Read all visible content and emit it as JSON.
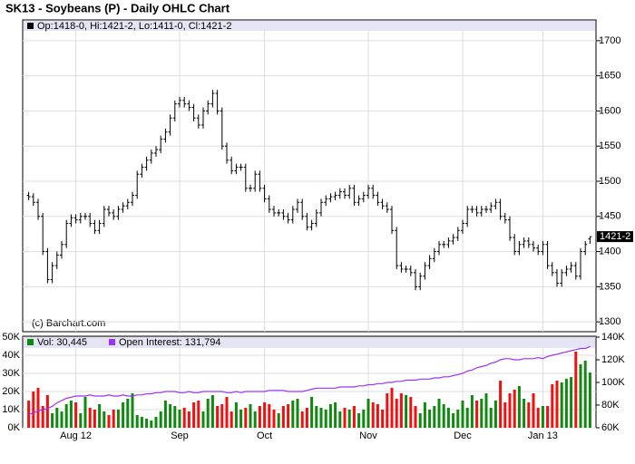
{
  "chart_data": {
    "type": "ohlc",
    "title": "SK13 - Soybeans (P) - Daily OHLC Chart",
    "legend_text": "Op:1418-0, Hi:1421-2, Lo:1411-0, Cl:1421-2",
    "copyright": "(c) Barchart.com",
    "color": "#000000",
    "last_label": "1421-2",
    "grid": true,
    "ylim": [
      1286,
      1714
    ],
    "yticks": [
      1300,
      1350,
      1400,
      1450,
      1500,
      1550,
      1600,
      1650,
      1700
    ],
    "categories": [
      null,
      null,
      null,
      null,
      null,
      null,
      null,
      null,
      null,
      null,
      "Aug 12",
      null,
      null,
      null,
      null,
      null,
      null,
      null,
      null,
      null,
      null,
      null,
      null,
      null,
      null,
      null,
      null,
      null,
      null,
      null,
      null,
      null,
      "Sep",
      null,
      null,
      null,
      null,
      null,
      null,
      null,
      null,
      null,
      null,
      null,
      null,
      null,
      null,
      null,
      null,
      null,
      "Oct",
      null,
      null,
      null,
      null,
      null,
      null,
      null,
      null,
      null,
      null,
      null,
      null,
      null,
      null,
      null,
      null,
      null,
      null,
      null,
      null,
      null,
      "Nov",
      null,
      null,
      null,
      null,
      null,
      null,
      null,
      null,
      null,
      null,
      null,
      null,
      null,
      null,
      null,
      null,
      null,
      null,
      null,
      "Dec",
      null,
      null,
      null,
      null,
      null,
      null,
      null,
      null,
      null,
      null,
      null,
      null,
      null,
      null,
      null,
      null,
      "Jan 13",
      null,
      null,
      null,
      null,
      null,
      null,
      null,
      null,
      null,
      null
    ],
    "open": [
      1480,
      1478,
      1470,
      1450,
      1400,
      1360,
      1380,
      1395,
      1410,
      1440,
      1448,
      1445,
      1450,
      1450,
      1440,
      1430,
      1440,
      1460,
      1455,
      1450,
      1460,
      1465,
      1470,
      1480,
      1510,
      1520,
      1530,
      1540,
      1545,
      1560,
      1570,
      1590,
      1610,
      1615,
      1610,
      1605,
      1590,
      1580,
      1600,
      1610,
      1625,
      1600,
      1550,
      1530,
      1515,
      1520,
      1520,
      1490,
      1490,
      1510,
      1490,
      1475,
      1460,
      1455,
      1455,
      1450,
      1445,
      1460,
      1470,
      1450,
      1435,
      1440,
      1455,
      1470,
      1475,
      1478,
      1480,
      1485,
      1480,
      1490,
      1470,
      1475,
      1480,
      1490,
      1480,
      1470,
      1465,
      1460,
      1430,
      1380,
      1375,
      1375,
      1370,
      1350,
      1365,
      1380,
      1390,
      1400,
      1410,
      1410,
      1415,
      1420,
      1430,
      1440,
      1460,
      1460,
      1455,
      1460,
      1460,
      1465,
      1470,
      1450,
      1445,
      1420,
      1400,
      1410,
      1415,
      1410,
      1405,
      1400,
      1410,
      1380,
      1370,
      1355,
      1370,
      1375,
      1380,
      1365,
      1400,
      1418
    ],
    "high": [
      1485,
      1483,
      1475,
      1455,
      1405,
      1385,
      1400,
      1415,
      1445,
      1453,
      1453,
      1455,
      1455,
      1455,
      1445,
      1445,
      1465,
      1465,
      1460,
      1465,
      1470,
      1475,
      1485,
      1515,
      1525,
      1535,
      1545,
      1550,
      1565,
      1575,
      1595,
      1615,
      1620,
      1620,
      1615,
      1610,
      1595,
      1605,
      1615,
      1630,
      1630,
      1605,
      1555,
      1535,
      1525,
      1525,
      1525,
      1495,
      1515,
      1515,
      1495,
      1480,
      1465,
      1460,
      1460,
      1455,
      1465,
      1475,
      1475,
      1455,
      1445,
      1460,
      1475,
      1480,
      1483,
      1485,
      1490,
      1490,
      1495,
      1495,
      1480,
      1485,
      1495,
      1495,
      1485,
      1475,
      1470,
      1465,
      1435,
      1385,
      1380,
      1380,
      1375,
      1370,
      1385,
      1395,
      1405,
      1415,
      1415,
      1420,
      1425,
      1435,
      1445,
      1465,
      1465,
      1465,
      1465,
      1465,
      1470,
      1475,
      1475,
      1455,
      1450,
      1425,
      1415,
      1420,
      1420,
      1415,
      1410,
      1415,
      1415,
      1385,
      1375,
      1375,
      1380,
      1385,
      1385,
      1405,
      1415,
      1421.25
    ],
    "low": [
      1473,
      1465,
      1445,
      1395,
      1355,
      1355,
      1375,
      1390,
      1405,
      1435,
      1440,
      1440,
      1445,
      1435,
      1425,
      1425,
      1435,
      1450,
      1445,
      1445,
      1455,
      1460,
      1465,
      1475,
      1505,
      1515,
      1525,
      1535,
      1540,
      1555,
      1565,
      1585,
      1605,
      1605,
      1600,
      1585,
      1575,
      1575,
      1595,
      1605,
      1595,
      1545,
      1525,
      1510,
      1510,
      1515,
      1485,
      1485,
      1485,
      1485,
      1470,
      1455,
      1450,
      1450,
      1445,
      1440,
      1440,
      1455,
      1445,
      1430,
      1430,
      1435,
      1450,
      1465,
      1470,
      1473,
      1475,
      1475,
      1475,
      1465,
      1465,
      1470,
      1475,
      1475,
      1465,
      1460,
      1455,
      1425,
      1375,
      1370,
      1370,
      1365,
      1345,
      1345,
      1360,
      1375,
      1385,
      1395,
      1405,
      1405,
      1410,
      1415,
      1425,
      1435,
      1455,
      1450,
      1450,
      1455,
      1455,
      1460,
      1445,
      1440,
      1415,
      1395,
      1395,
      1405,
      1405,
      1400,
      1395,
      1395,
      1375,
      1365,
      1350,
      1350,
      1365,
      1370,
      1360,
      1360,
      1395,
      1411
    ],
    "close": [
      1478,
      1470,
      1450,
      1400,
      1360,
      1380,
      1395,
      1410,
      1440,
      1448,
      1445,
      1450,
      1450,
      1440,
      1430,
      1440,
      1460,
      1455,
      1450,
      1460,
      1465,
      1470,
      1480,
      1510,
      1520,
      1530,
      1540,
      1545,
      1560,
      1570,
      1590,
      1610,
      1615,
      1610,
      1605,
      1590,
      1580,
      1600,
      1610,
      1625,
      1600,
      1550,
      1530,
      1515,
      1520,
      1520,
      1490,
      1490,
      1510,
      1490,
      1475,
      1460,
      1455,
      1455,
      1450,
      1445,
      1460,
      1470,
      1450,
      1435,
      1440,
      1455,
      1470,
      1475,
      1478,
      1480,
      1485,
      1480,
      1490,
      1470,
      1475,
      1480,
      1490,
      1480,
      1470,
      1465,
      1460,
      1430,
      1380,
      1375,
      1375,
      1370,
      1350,
      1365,
      1380,
      1390,
      1400,
      1410,
      1410,
      1415,
      1420,
      1430,
      1440,
      1460,
      1460,
      1455,
      1460,
      1460,
      1465,
      1470,
      1450,
      1445,
      1420,
      1400,
      1410,
      1415,
      1410,
      1405,
      1400,
      1410,
      1380,
      1370,
      1355,
      1370,
      1375,
      1380,
      1365,
      1400,
      1410,
      1421.25
    ],
    "volume": {
      "name": "Vol: 30,445",
      "up_color": "#118811",
      "down_color": "#ee1111",
      "ylim": [
        0,
        50000
      ],
      "yticks": [
        {
          "value": 0,
          "label": "0K"
        },
        {
          "value": 10000,
          "label": "10K"
        },
        {
          "value": 20000,
          "label": "20K"
        },
        {
          "value": 30000,
          "label": "30K"
        },
        {
          "value": 40000,
          "label": "40K"
        },
        {
          "value": 50000,
          "label": "50K"
        }
      ],
      "values": [
        15000,
        20000,
        22000,
        12000,
        18000,
        8000,
        11000,
        9000,
        13000,
        15000,
        14000,
        8000,
        17000,
        11000,
        10000,
        13000,
        9000,
        7000,
        10000,
        10000,
        14000,
        16000,
        19000,
        7000,
        6000,
        5000,
        4000,
        6000,
        9000,
        15000,
        13000,
        12000,
        10000,
        11000,
        9000,
        14000,
        15000,
        9000,
        16000,
        18000,
        12000,
        13000,
        17000,
        9000,
        14000,
        10000,
        11000,
        13000,
        9000,
        12000,
        14000,
        13000,
        10000,
        8000,
        12000,
        13000,
        15000,
        16000,
        9000,
        11000,
        17000,
        12000,
        11000,
        10000,
        13000,
        14000,
        9000,
        11000,
        10000,
        12000,
        8000,
        10000,
        16000,
        14000,
        13000,
        10000,
        19000,
        22000,
        16000,
        19000,
        18000,
        17000,
        12000,
        8000,
        14000,
        10000,
        12000,
        16000,
        13000,
        11000,
        8000,
        10000,
        15000,
        11000,
        18000,
        15000,
        16000,
        19000,
        11000,
        15000,
        26000,
        14000,
        19000,
        21000,
        23000,
        16000,
        14000,
        19000,
        11000,
        12000,
        12000,
        24000,
        26000,
        25000,
        27000,
        28000,
        42000,
        35000,
        37000,
        30445
      ]
    },
    "open_interest": {
      "name": "Open Interest: 131,794",
      "color": "#9933ff",
      "axis": "y2",
      "y2lim": [
        60000,
        140000
      ],
      "y2ticks": [
        {
          "value": 60000,
          "label": "60K"
        },
        {
          "value": 80000,
          "label": "80K"
        },
        {
          "value": 100000,
          "label": "100K"
        },
        {
          "value": 120000,
          "label": "120K"
        },
        {
          "value": 140000,
          "label": "140K"
        }
      ],
      "values": [
        72000,
        73000,
        75000,
        76000,
        77000,
        79000,
        82000,
        84000,
        86000,
        87000,
        88000,
        88000,
        88000,
        89000,
        88000,
        88000,
        88000,
        89000,
        88000,
        88000,
        89000,
        88000,
        88000,
        89000,
        89000,
        90000,
        90000,
        91000,
        91000,
        92000,
        92000,
        92000,
        91000,
        91000,
        92000,
        91000,
        91000,
        92000,
        92000,
        92000,
        92000,
        92000,
        91000,
        91000,
        92000,
        91000,
        92000,
        92000,
        92000,
        92000,
        92000,
        93000,
        93000,
        93000,
        93000,
        92000,
        92000,
        92000,
        92000,
        93000,
        94000,
        95000,
        95000,
        95000,
        95000,
        95000,
        96000,
        96000,
        96000,
        96000,
        97000,
        97000,
        98000,
        98000,
        99000,
        99000,
        100000,
        100000,
        101000,
        101000,
        102000,
        102000,
        102000,
        103000,
        103000,
        103000,
        104000,
        104000,
        105000,
        105000,
        106000,
        107000,
        108000,
        110000,
        111000,
        113000,
        114000,
        115000,
        117000,
        118000,
        120000,
        121000,
        121000,
        120000,
        120000,
        121000,
        121000,
        121000,
        122000,
        121000,
        123000,
        124000,
        125000,
        126000,
        127000,
        128000,
        129000,
        130000,
        130000,
        131794
      ]
    }
  }
}
